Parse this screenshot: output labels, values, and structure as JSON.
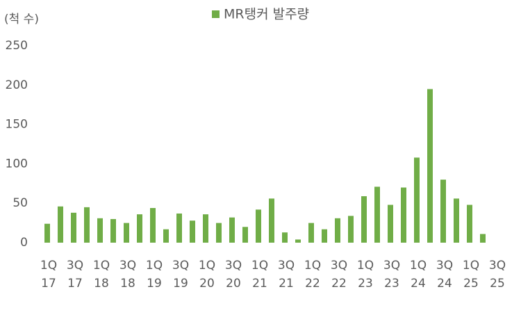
{
  "chart_data": {
    "type": "bar",
    "y_axis_label": "(척 수)",
    "series": [
      {
        "name": "MR탱커 발주량",
        "color": "#70ad47",
        "values": [
          24,
          46,
          38,
          45,
          31,
          30,
          25,
          36,
          44,
          17,
          37,
          28,
          36,
          25,
          32,
          20,
          42,
          56,
          13,
          4,
          25,
          17,
          31,
          34,
          59,
          71,
          48,
          70,
          108,
          195,
          80,
          56,
          48,
          11,
          null
        ]
      }
    ],
    "categories": [
      "1Q 17",
      null,
      "3Q 17",
      null,
      "1Q 18",
      null,
      "3Q 18",
      null,
      "1Q 19",
      null,
      "3Q 19",
      null,
      "1Q 20",
      null,
      "3Q 20",
      null,
      "1Q 21",
      null,
      "3Q 21",
      null,
      "1Q 22",
      null,
      "3Q 22",
      null,
      "1Q 23",
      null,
      "3Q 23",
      null,
      "1Q 24",
      null,
      "3Q 24",
      null,
      "1Q 25",
      null,
      "3Q 25"
    ],
    "ylim": [
      0,
      250
    ],
    "yticks": [
      0,
      50,
      100,
      150,
      200,
      250
    ],
    "grid": false,
    "legend": "top"
  }
}
